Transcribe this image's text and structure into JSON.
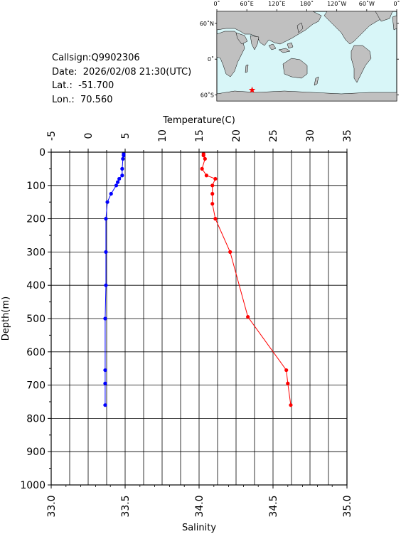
{
  "station": {
    "callsign_label": "Callsign:",
    "callsign": "Q9902306",
    "date_label": "Date:",
    "date": "2026/02/08 21:30(UTC)",
    "lat_label": "Lat.:",
    "lat": "-51.700",
    "lon_label": "Lon.:",
    "lon": "70.560"
  },
  "map": {
    "lon_labels": [
      "0˚",
      "60˚E",
      "120˚E",
      "180˚",
      "120˚W",
      "60˚W",
      "0˚"
    ],
    "lat_labels": [
      "60˚N",
      "0˚",
      "60˚S"
    ],
    "marker_lon": 70.56,
    "marker_lat": -51.7,
    "colors": {
      "ocean": "#d8f6f8",
      "land": "#c0c0c0",
      "marker": "#ff0000"
    }
  },
  "chart_data": {
    "type": "line",
    "top_axis_label": "Temperature(C)",
    "bottom_axis_label": "Salinity",
    "left_axis_label": "Depth(m)",
    "depth_ticks": [
      "0",
      "100",
      "200",
      "300",
      "400",
      "500",
      "600",
      "700",
      "800",
      "900",
      "1000"
    ],
    "temperature_ticks": [
      "-5",
      "0",
      "5",
      "10",
      "15",
      "20",
      "25",
      "30",
      "35"
    ],
    "salinity_ticks": [
      "33.0",
      "33.5",
      "34.0",
      "34.5",
      "35.0"
    ],
    "depth_range": [
      0,
      1000
    ],
    "temperature_range": [
      -5,
      35
    ],
    "salinity_range": [
      33.0,
      35.0
    ],
    "grid": true,
    "series": [
      {
        "color": "#0000ff",
        "axis": "temperature",
        "points": [
          {
            "depth": 5,
            "value": 4.8
          },
          {
            "depth": 10,
            "value": 4.8
          },
          {
            "depth": 20,
            "value": 4.7
          },
          {
            "depth": 50,
            "value": 4.6
          },
          {
            "depth": 70,
            "value": 4.6
          },
          {
            "depth": 80,
            "value": 4.2
          },
          {
            "depth": 90,
            "value": 4.0
          },
          {
            "depth": 100,
            "value": 3.8
          },
          {
            "depth": 125,
            "value": 3.1
          },
          {
            "depth": 150,
            "value": 2.6
          },
          {
            "depth": 200,
            "value": 2.4
          },
          {
            "depth": 300,
            "value": 2.4
          },
          {
            "depth": 400,
            "value": 2.4
          },
          {
            "depth": 500,
            "value": 2.3
          },
          {
            "depth": 655,
            "value": 2.3
          },
          {
            "depth": 695,
            "value": 2.3
          },
          {
            "depth": 760,
            "value": 2.3
          }
        ]
      },
      {
        "color": "#ff0000",
        "axis": "salinity",
        "points": [
          {
            "depth": 5,
            "value": 34.03
          },
          {
            "depth": 10,
            "value": 34.03
          },
          {
            "depth": 20,
            "value": 34.04
          },
          {
            "depth": 50,
            "value": 34.02
          },
          {
            "depth": 70,
            "value": 34.05
          },
          {
            "depth": 80,
            "value": 34.11
          },
          {
            "depth": 100,
            "value": 34.09
          },
          {
            "depth": 125,
            "value": 34.09
          },
          {
            "depth": 155,
            "value": 34.09
          },
          {
            "depth": 200,
            "value": 34.11
          },
          {
            "depth": 300,
            "value": 34.21
          },
          {
            "depth": 495,
            "value": 34.33
          },
          {
            "depth": 655,
            "value": 34.59
          },
          {
            "depth": 695,
            "value": 34.6
          },
          {
            "depth": 760,
            "value": 34.62
          }
        ]
      }
    ]
  }
}
